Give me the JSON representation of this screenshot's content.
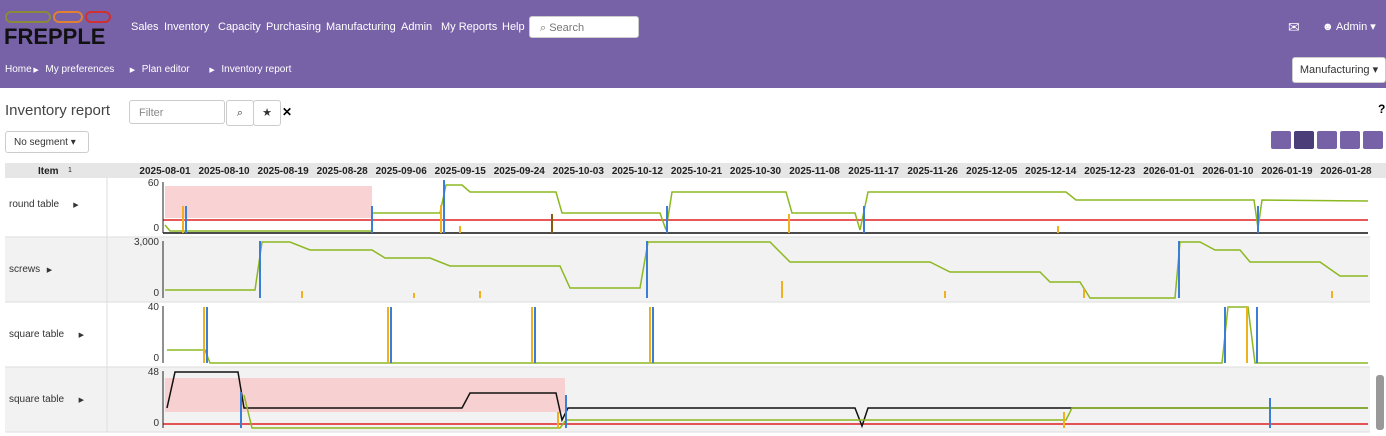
{
  "header": {
    "logo": "FREPPLE",
    "nav": [
      "Sales",
      "Inventory",
      "Capacity",
      "Purchasing",
      "Manufacturing",
      "Admin",
      "My Reports",
      "Help"
    ],
    "search": "Search",
    "user": "Admin"
  },
  "breadcrumb": {
    "items": [
      "Home",
      "My preferences",
      "Plan editor",
      "Inventory report"
    ],
    "scenario": "Manufacturing"
  },
  "toolbar": {
    "title": "Inventory report",
    "filter": "Filter",
    "segment": "No segment",
    "help": "?"
  },
  "table": {
    "item_header": "Item",
    "sort_order": "1",
    "dates": [
      "2025-08-01",
      "2025-08-10",
      "2025-08-19",
      "2025-08-28",
      "2025-09-06",
      "2025-09-15",
      "2025-09-24",
      "2025-10-03",
      "2025-10-12",
      "2025-10-21",
      "2025-10-30",
      "2025-11-08",
      "2025-11-17",
      "2025-11-26",
      "2025-12-05",
      "2025-12-14",
      "2025-12-23",
      "2026-01-01",
      "2026-01-10",
      "2026-01-19",
      "2026-01-28"
    ],
    "rows": [
      {
        "item": "round table",
        "ticks": [
          "60",
          "0"
        ]
      },
      {
        "item": "screws",
        "ticks": [
          "3,000",
          "0"
        ]
      },
      {
        "item": "square table",
        "ticks": [
          "40",
          "0"
        ]
      },
      {
        "item": "square table",
        "ticks": [
          "48",
          "0"
        ]
      }
    ]
  }
}
